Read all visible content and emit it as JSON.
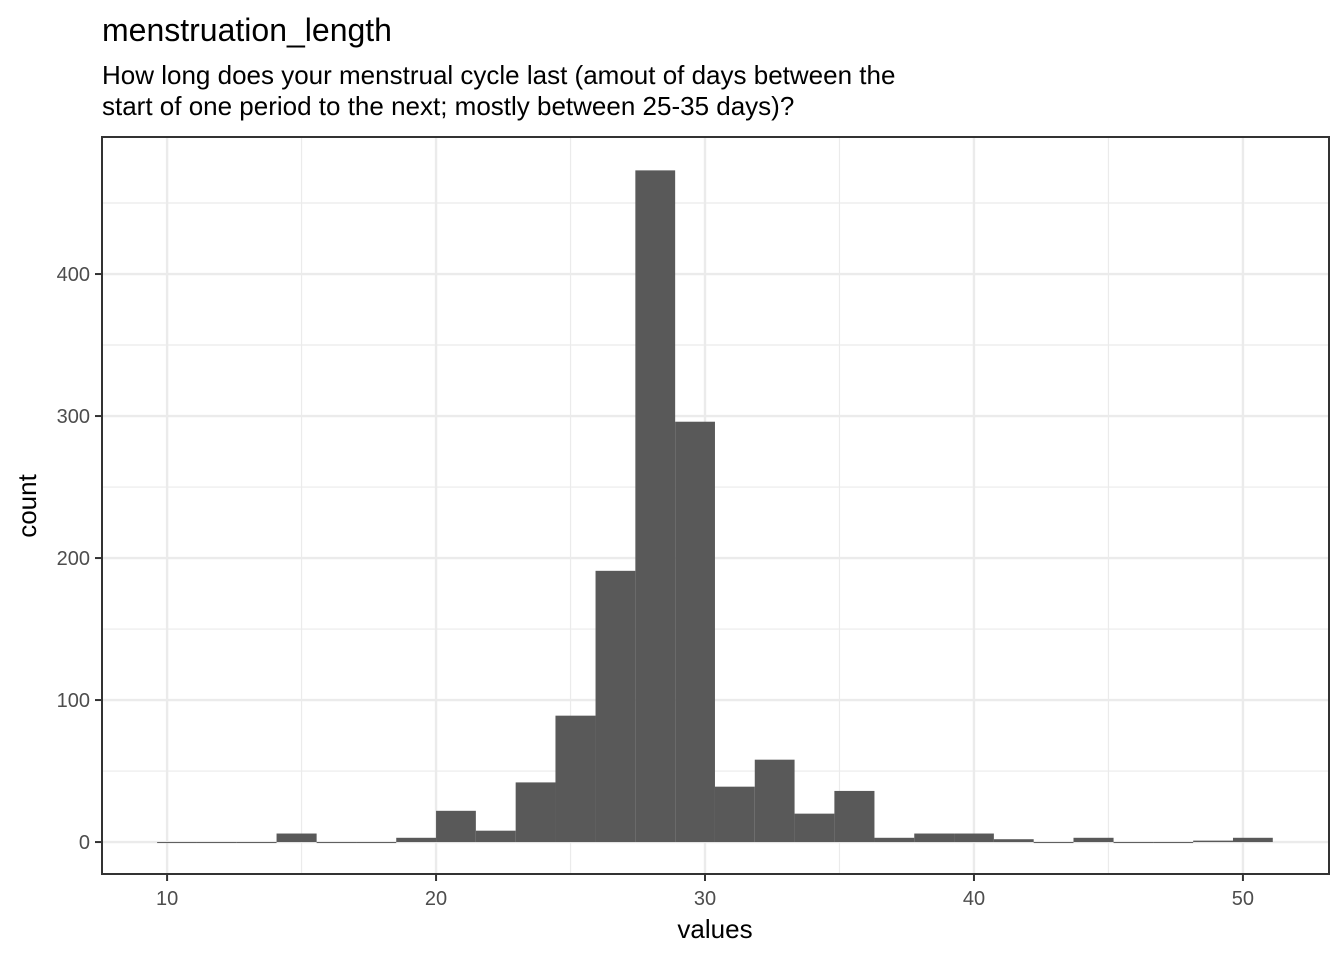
{
  "chart_data": {
    "type": "histogram",
    "title": "menstruation_length",
    "subtitle": [
      "How long does your menstrual cycle last (amout of days between the",
      "start of one period to the next; mostly between 25-35 days)?"
    ],
    "x_label": "values",
    "y_label": "count",
    "bins": [
      9.63,
      11.11,
      12.59,
      14.07,
      15.56,
      17.04,
      18.52,
      20.0,
      21.48,
      22.96,
      24.44,
      25.93,
      27.41,
      28.89,
      30.37,
      31.85,
      33.33,
      34.81,
      36.3,
      37.78,
      39.26,
      40.74,
      42.22,
      43.7,
      45.19,
      46.67,
      48.15,
      49.63,
      51.11
    ],
    "values": [
      0,
      0,
      0,
      6,
      0,
      0,
      3,
      22,
      8,
      42,
      89,
      191,
      473,
      296,
      39,
      58,
      20,
      36,
      3,
      6,
      6,
      2,
      0,
      3,
      0,
      0,
      1,
      3
    ],
    "color": "#595959",
    "xlim": [
      7.58,
      53.2
    ],
    "xticks": [
      10,
      20,
      30,
      40,
      50
    ],
    "xminor": [
      15,
      25,
      35,
      45
    ],
    "ylim": [
      -22.5,
      496.5
    ],
    "yticks": [
      0,
      100,
      200,
      300,
      400
    ],
    "yminor": [
      50,
      150,
      250,
      350,
      450
    ],
    "grid": true
  }
}
